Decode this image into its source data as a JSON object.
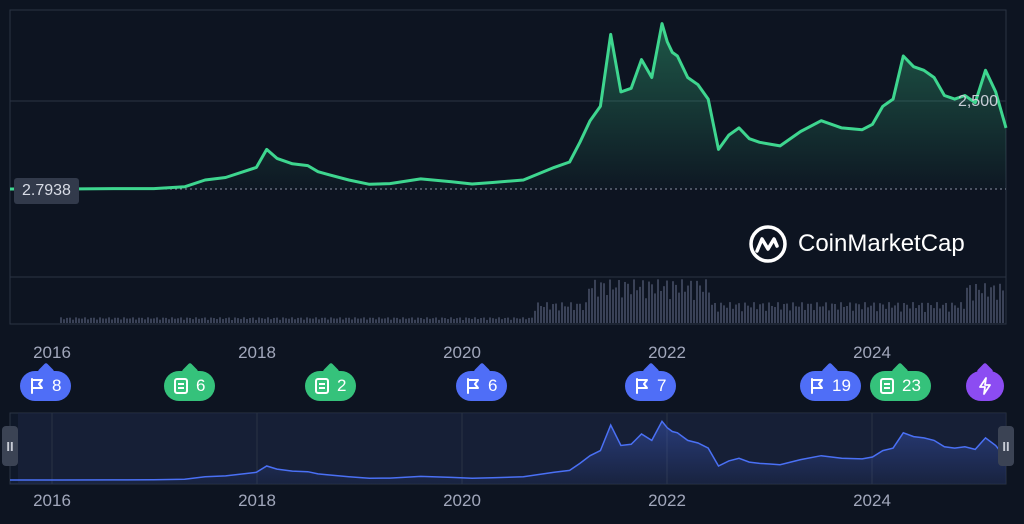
{
  "watermark": {
    "brand": "CoinMarketCap",
    "logo_icon": "coinmarketcap-logo-icon"
  },
  "price_label": "2.7938",
  "axis_right_label": "2,500",
  "years": [
    "2016",
    "2018",
    "2020",
    "2022",
    "2024"
  ],
  "events": [
    {
      "type": "flag",
      "count": "8"
    },
    {
      "type": "news",
      "count": "6"
    },
    {
      "type": "news",
      "count": "2"
    },
    {
      "type": "flag",
      "count": "6"
    },
    {
      "type": "flag",
      "count": "7"
    },
    {
      "type": "flag",
      "count": "19"
    },
    {
      "type": "news",
      "count": "23"
    },
    {
      "type": "flash",
      "count": ""
    }
  ],
  "colors": {
    "background": "#0d1421",
    "line": "#3ed68f",
    "nav_line": "#4a70f5",
    "flag": "#4f6ef7",
    "news": "#35c27b",
    "flash": "#8c4cf2"
  },
  "chart_data": {
    "type": "line",
    "x_range": [
      2015.5,
      2025.2
    ],
    "baseline_value": 2.7938,
    "y_range": [
      0,
      4700
    ],
    "series": [
      {
        "values_time": [
          2015.5,
          2016.0,
          2016.5,
          2016.9,
          2017.2,
          2017.4,
          2017.6,
          2017.9,
          2018.0,
          2018.1,
          2018.25,
          2018.4,
          2018.5,
          2018.6,
          2018.8,
          2019.0,
          2019.2,
          2019.5,
          2019.8,
          2020.0,
          2020.2,
          2020.5,
          2020.8,
          2020.95,
          2021.05,
          2021.15,
          2021.25,
          2021.35,
          2021.45,
          2021.55,
          2021.65,
          2021.75,
          2021.85,
          2021.9,
          2021.95,
          2022.0,
          2022.1,
          2022.2,
          2022.3,
          2022.4,
          2022.5,
          2022.6,
          2022.7,
          2022.8,
          2022.9,
          2023.0,
          2023.2,
          2023.4,
          2023.6,
          2023.8,
          2023.9,
          2024.0,
          2024.1,
          2024.2,
          2024.3,
          2024.4,
          2024.5,
          2024.6,
          2024.7,
          2024.8,
          2024.9,
          2025.0,
          2025.1,
          2025.2
        ],
        "values_price": [
          1,
          1,
          10,
          12,
          60,
          250,
          320,
          600,
          1100,
          850,
          700,
          650,
          480,
          400,
          250,
          130,
          150,
          280,
          200,
          140,
          180,
          250,
          600,
          750,
          1300,
          1900,
          2300,
          4300,
          2700,
          2800,
          3600,
          3100,
          4600,
          4100,
          3800,
          3700,
          3100,
          2900,
          2500,
          1100,
          1500,
          1700,
          1400,
          1300,
          1250,
          1200,
          1600,
          1900,
          1700,
          1650,
          1800,
          2300,
          2500,
          3700,
          3400,
          3300,
          3100,
          2600,
          2500,
          2600,
          2400,
          3300,
          2700,
          1700
        ]
      }
    ]
  }
}
